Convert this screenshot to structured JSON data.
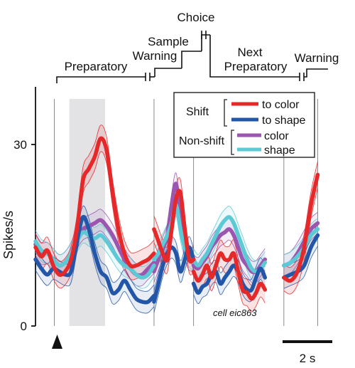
{
  "chart_data": {
    "type": "line",
    "title": "",
    "ylabel": "Spikes/s",
    "xlabel": "",
    "ylim": [
      0,
      38
    ],
    "yticks": [
      0,
      30
    ],
    "scale_bar_label": "2 s",
    "annotation": "cell eic863",
    "epochs": [
      {
        "label": "Preparatory",
        "x0": 0.5,
        "x1": 6.0
      },
      {
        "label": "Warning",
        "x0": 6.0,
        "x1": 7.4
      },
      {
        "label": "Sample",
        "x0": 7.4,
        "x1": 8.3
      },
      {
        "label": "Choice",
        "x0": 8.3,
        "x1": 9.0
      },
      {
        "label": "Next Preparatory",
        "x0": 9.0,
        "x1": 15.4
      },
      {
        "label": "Warning",
        "x0": 15.4,
        "x1": 16.6
      }
    ],
    "legend": {
      "group_shift": "Shift",
      "group_nonshift": "Non-shift",
      "entries": [
        "to color",
        "to shape",
        "color",
        "shape"
      ]
    },
    "segments": [
      {
        "x_start": 0.0,
        "x_end": 6.3
      },
      {
        "x_start": 6.3,
        "x_end": 8.4
      },
      {
        "x_start": 8.4,
        "x_end": 12.2
      },
      {
        "x_start": 13.2,
        "x_end": 15.0
      }
    ],
    "shaded_window": {
      "x0": 1.8,
      "x1": 3.7
    },
    "event_lines_x": [
      1.0,
      6.3,
      8.4,
      13.2,
      15.0
    ],
    "series": [
      {
        "name": "to color",
        "color": "#e5292a",
        "ci": 2.2,
        "values": [
          [
            13,
            11.5,
            12.5,
            10,
            8.5,
            9,
            11,
            16,
            24,
            26,
            28,
            31,
            29,
            22,
            16,
            12,
            10,
            10,
            10.5,
            11,
            12
          ],
          [
            16,
            14,
            12,
            11,
            16,
            21,
            22,
            16,
            11,
            11
          ],
          [
            9,
            7.5,
            8.5,
            10,
            8,
            10,
            12,
            11,
            11,
            12,
            9,
            6,
            5.5,
            4.5,
            5.5,
            7,
            6
          ],
          [
            8,
            7.5,
            9,
            13,
            20,
            25
          ]
        ]
      },
      {
        "name": "to shape",
        "color": "#2456a8",
        "ci": 1.8,
        "values": [
          [
            11,
            9.5,
            8.5,
            9.5,
            9,
            8.5,
            9,
            14,
            18,
            16,
            12,
            9,
            8,
            5.5,
            6,
            7.5,
            6,
            4.5,
            4,
            4,
            5
          ],
          [
            4,
            7,
            10,
            12,
            13,
            12,
            9,
            11,
            13,
            11
          ],
          [
            7,
            5.5,
            6.5,
            7,
            8.5,
            9,
            7,
            8,
            9,
            10,
            9,
            7,
            6,
            6,
            8,
            9.5,
            8
          ],
          [
            8,
            8.5,
            9,
            10,
            13,
            15
          ]
        ]
      },
      {
        "name": "color",
        "color": "#9b56b0",
        "ci": 1.8,
        "values": [
          [
            13.5,
            12,
            12,
            11,
            10,
            10.5,
            12,
            14.5,
            16,
            16.5,
            17,
            17.5,
            16.5,
            15,
            13,
            11,
            9.5,
            8.5,
            8.5,
            9.5,
            10.5
          ],
          [
            9,
            11,
            13,
            15,
            20,
            23.5,
            18,
            13,
            11,
            11
          ],
          [
            10,
            9.5,
            10.5,
            11.5,
            13,
            14,
            15,
            15.5,
            16,
            15,
            13,
            11,
            10,
            9,
            9,
            10,
            11
          ],
          [
            10,
            10.5,
            12,
            14,
            16,
            17
          ]
        ]
      },
      {
        "name": "shape",
        "color": "#5cc9d4",
        "ci": 1.8,
        "values": [
          [
            14,
            12.5,
            12,
            11,
            10,
            10.5,
            12,
            14,
            15.5,
            15,
            14.5,
            15,
            14,
            12.5,
            11,
            10,
            9.5,
            8.5,
            8,
            8.5,
            10
          ],
          [
            11,
            12,
            13.5,
            15,
            17,
            20,
            16,
            13,
            11.5,
            11
          ],
          [
            11,
            10,
            11,
            12,
            13.5,
            15,
            16.5,
            17.5,
            18,
            17,
            15,
            13,
            11,
            9.5,
            9,
            9.5,
            10.5
          ],
          [
            10,
            10.5,
            11.5,
            13,
            15,
            16
          ]
        ]
      }
    ]
  }
}
